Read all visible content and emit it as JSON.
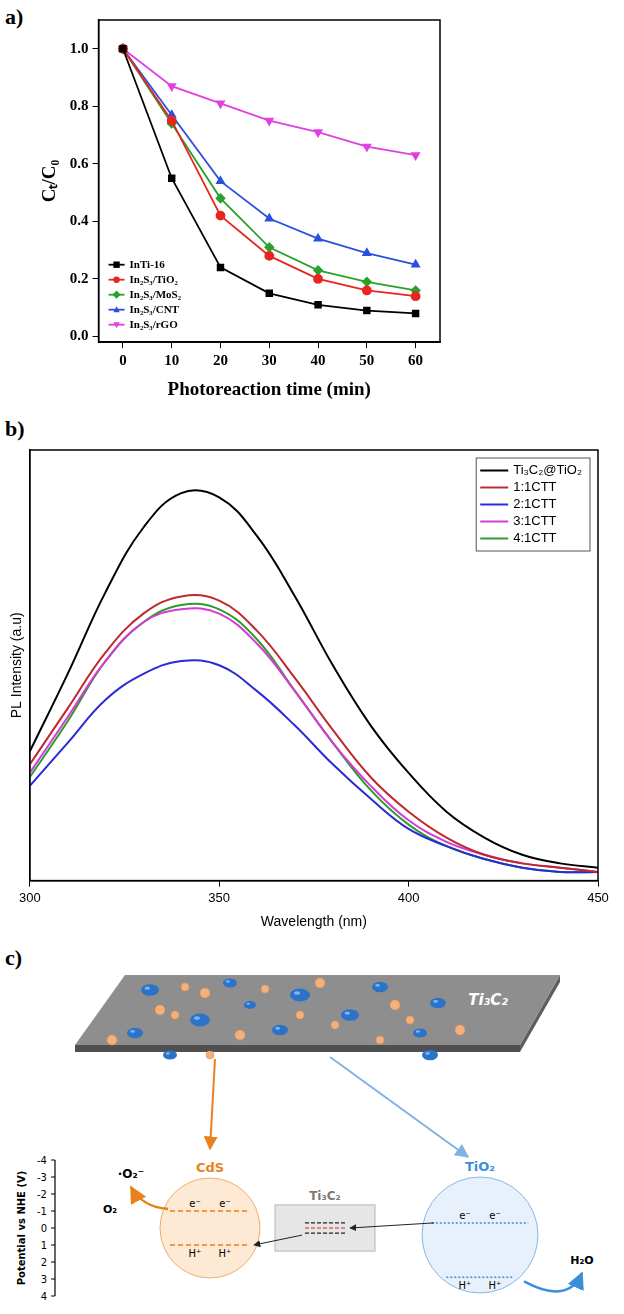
{
  "chart_data": [
    {
      "panel": "a)",
      "type": "line",
      "x_label": "Photoreaction time (min)",
      "y_label": "Cₜ/C₀",
      "x": [
        0,
        10,
        20,
        30,
        40,
        50,
        60
      ],
      "series": [
        {
          "name": "InTi-16",
          "color": "#000000",
          "marker": "square",
          "line_style": "solid",
          "values": [
            1.0,
            0.55,
            0.24,
            0.15,
            0.11,
            0.09,
            0.08
          ]
        },
        {
          "name": "In₂S₃/TiO₂",
          "color": "#e8251f",
          "marker": "circle",
          "line_style": "solid",
          "values": [
            1.0,
            0.75,
            0.42,
            0.28,
            0.2,
            0.16,
            0.14
          ]
        },
        {
          "name": "In₂S₃/MoS₂",
          "color": "#2ca02c",
          "marker": "diamond",
          "line_style": "solid",
          "values": [
            1.0,
            0.74,
            0.48,
            0.31,
            0.23,
            0.19,
            0.16
          ]
        },
        {
          "name": "In₂S₃/CNT",
          "color": "#2b50e0",
          "marker": "triangle",
          "line_style": "solid",
          "values": [
            1.0,
            0.77,
            0.54,
            0.41,
            0.34,
            0.29,
            0.25
          ]
        },
        {
          "name": "In₂S₃/rGO",
          "color": "#e040e0",
          "marker": "triangle_down",
          "line_style": "solid",
          "values": [
            1.0,
            0.87,
            0.81,
            0.75,
            0.71,
            0.66,
            0.63
          ]
        }
      ],
      "xlim": [
        -5,
        65
      ],
      "xticks": [
        0,
        10,
        20,
        30,
        40,
        50,
        60
      ],
      "ylim": [
        -0.02,
        1.1
      ],
      "yticks": [
        {
          "value": 0,
          "label": "0.0"
        },
        0.2,
        0.4,
        0.6,
        0.8,
        {
          "value": 1,
          "label": "1.0"
        }
      ],
      "legend": "lower left",
      "grid": false
    },
    {
      "panel": "b)",
      "type": "line",
      "x_label": "Wavelength (nm)",
      "y_label": "PL Intensity (a.u)",
      "x": [
        300,
        310,
        320,
        330,
        340,
        350,
        360,
        370,
        380,
        390,
        400,
        410,
        420,
        430,
        440,
        450
      ],
      "series": [
        {
          "name": "Ti₃C₂@TiO₂",
          "color": "#000000",
          "marker": "none",
          "line_style": "smooth",
          "values": [
            30,
            48,
            67,
            82,
            90,
            89,
            80,
            66,
            50,
            36,
            25,
            16,
            10,
            6,
            4,
            3
          ]
        },
        {
          "name": "1:1CTT",
          "color": "#c0282d",
          "marker": "none",
          "line_style": "smooth",
          "values": [
            27,
            40,
            53,
            62,
            66,
            65,
            58,
            47,
            35,
            24,
            16,
            10,
            6,
            4,
            3,
            2
          ]
        },
        {
          "name": "2:1CTT",
          "color": "#2a2ad6",
          "marker": "none",
          "line_style": "smooth",
          "values": [
            22,
            32,
            42,
            48,
            51,
            50,
            44,
            36,
            27,
            19,
            12,
            8,
            5,
            3,
            2,
            2
          ]
        },
        {
          "name": "3:1CTT",
          "color": "#d63ad6",
          "marker": "none",
          "line_style": "smooth",
          "values": [
            25,
            38,
            51,
            60,
            63,
            62,
            55,
            44,
            32,
            22,
            14,
            9,
            6,
            4,
            3,
            2
          ]
        },
        {
          "name": "4:1CTT",
          "color": "#2e9b2e",
          "marker": "none",
          "line_style": "smooth",
          "values": [
            24,
            37,
            51,
            60,
            64,
            63,
            56,
            44,
            32,
            21,
            13,
            8,
            5,
            3,
            2,
            2
          ]
        }
      ],
      "xlim": [
        300,
        450
      ],
      "xticks": [
        300,
        350,
        400,
        450
      ],
      "ylim": [
        0,
        100
      ],
      "tick_labels": "x",
      "legend": "upper right",
      "grid": false
    }
  ],
  "diagram": {
    "panel": "c)",
    "sheet_label": "Ti₃C₂",
    "axis": {
      "title": "Potential vs NHE (V)",
      "lim": [
        -4,
        4
      ],
      "ticks": [
        -4,
        -3,
        -2,
        -1,
        0,
        1,
        2,
        3,
        4
      ]
    },
    "components": [
      {
        "name": "CdS",
        "color": "#e8821e",
        "cb": -1.0,
        "vb": 1.0,
        "electron": "e⁻",
        "hole": "H⁺"
      },
      {
        "name": "Ti₃C₂",
        "color": "#7a7a7a",
        "fermi_levels": [
          -0.3,
          0,
          0.3
        ]
      },
      {
        "name": "TiO₂",
        "color": "#3b8fd9",
        "cb": -0.3,
        "vb": 2.9,
        "electron": "e⁻",
        "hole": "H⁺"
      }
    ],
    "reactions": [
      {
        "reactant": "O₂",
        "product": "·O₂⁻"
      },
      {
        "reactant": "H₂O"
      }
    ]
  }
}
